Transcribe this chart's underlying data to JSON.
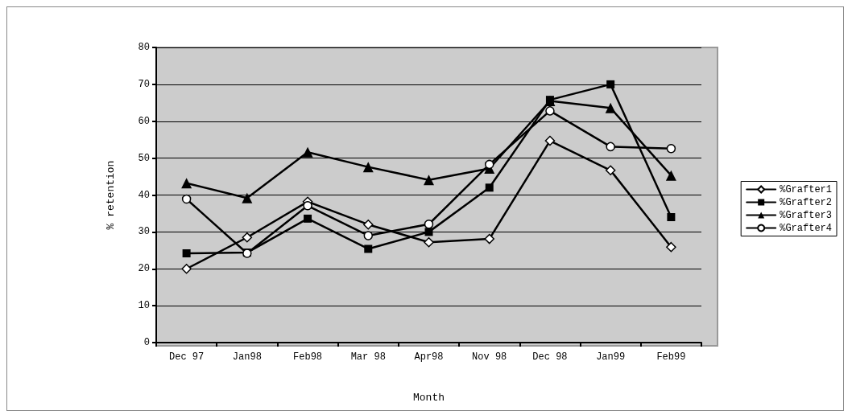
{
  "chart_data": {
    "type": "line",
    "xlabel": "Month",
    "ylabel": "% retention",
    "categories": [
      "Dec 97",
      "Jan98",
      "Feb98",
      "Mar 98",
      "Apr98",
      "Nov 98",
      "Dec 98",
      "Jan99",
      "Feb99"
    ],
    "series": [
      {
        "name": "%Grafter1",
        "color": "#000000",
        "marker": "diamond",
        "values": [
          20,
          28.5,
          38.2,
          32,
          27.2,
          28.1,
          54.7,
          46.7,
          25.9
        ]
      },
      {
        "name": "%Grafter2",
        "color": "#000000",
        "marker": "square",
        "values": [
          24.2,
          24.4,
          33.6,
          25.4,
          30,
          42,
          65.8,
          70,
          34
        ]
      },
      {
        "name": "%Grafter3",
        "color": "#000000",
        "marker": "triangle",
        "values": [
          43.2,
          39.2,
          51.6,
          47.6,
          44.1,
          47.2,
          65.5,
          63.6,
          45.3
        ]
      },
      {
        "name": "%Grafter4",
        "color": "#000000",
        "marker": "circle",
        "values": [
          38.9,
          24.2,
          37.1,
          29,
          32.1,
          48.3,
          62.8,
          53.1,
          52.6
        ]
      }
    ],
    "ylim": [
      0,
      80
    ],
    "yticks": [
      0,
      10,
      20,
      30,
      40,
      50,
      60,
      70,
      80
    ],
    "grid": "y",
    "legend": "right",
    "line_style": "solid"
  }
}
